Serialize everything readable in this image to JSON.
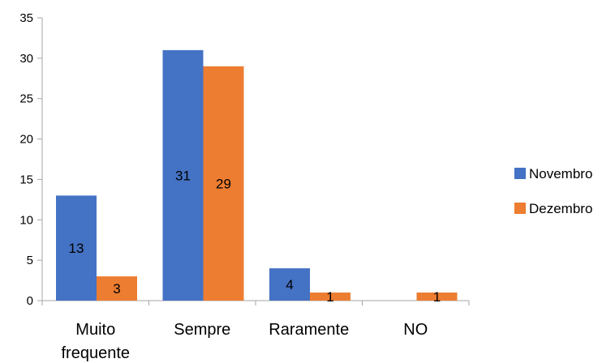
{
  "chart_data": {
    "type": "bar",
    "categories": [
      "Muito frequente",
      "Sempre",
      "Raramente",
      "NO"
    ],
    "category_lines": [
      [
        "Muito",
        "frequente"
      ],
      [
        "Sempre"
      ],
      [
        "Raramente"
      ],
      [
        "NO"
      ]
    ],
    "series": [
      {
        "name": "Novembro",
        "values": [
          13,
          31,
          4,
          0
        ],
        "labels": [
          "13",
          "31",
          "4",
          ""
        ],
        "color": "#4472C4"
      },
      {
        "name": "Dezembro",
        "values": [
          3,
          29,
          1,
          1
        ],
        "labels": [
          "3",
          "29",
          "1",
          "1"
        ],
        "color": "#ED7D31"
      }
    ],
    "ylim": [
      0,
      35
    ],
    "yticks": [
      0,
      5,
      10,
      15,
      20,
      25,
      30,
      35
    ],
    "grid": false,
    "legend_position": "right",
    "axis_color": "#A6A6A6"
  }
}
